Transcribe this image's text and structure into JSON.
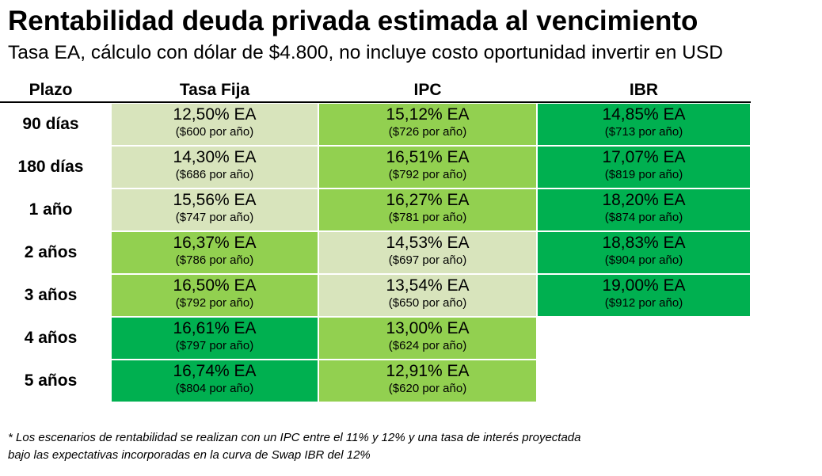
{
  "title": "Rentabilidad deuda privada estimada al vencimiento",
  "subtitle": "Tasa EA, cálculo con dólar de $4.800, no incluye costo oportunidad invertir en USD",
  "table": {
    "headers": [
      "Plazo",
      "Tasa Fija",
      "IPC",
      "IBR"
    ],
    "colors": {
      "light": "#d8e4bc",
      "mid": "#92d050",
      "dark": "#00b050"
    },
    "rows": [
      {
        "plazo": "90 días",
        "fija": {
          "rate": "12,50% EA",
          "annual": "($600 por año)",
          "shade": "light"
        },
        "ipc": {
          "rate": "15,12% EA",
          "annual": "($726 por año)",
          "shade": "mid"
        },
        "ibr": {
          "rate": "14,85% EA",
          "annual": "($713 por año)",
          "shade": "dark"
        }
      },
      {
        "plazo": "180 días",
        "fija": {
          "rate": "14,30% EA",
          "annual": "($686 por año)",
          "shade": "light"
        },
        "ipc": {
          "rate": "16,51% EA",
          "annual": "($792 por año)",
          "shade": "mid"
        },
        "ibr": {
          "rate": "17,07% EA",
          "annual": "($819 por año)",
          "shade": "dark"
        }
      },
      {
        "plazo": "1 año",
        "fija": {
          "rate": "15,56% EA",
          "annual": "($747 por año)",
          "shade": "light"
        },
        "ipc": {
          "rate": "16,27% EA",
          "annual": "($781 por año)",
          "shade": "mid"
        },
        "ibr": {
          "rate": "18,20% EA",
          "annual": "($874 por año)",
          "shade": "dark"
        }
      },
      {
        "plazo": "2 años",
        "fija": {
          "rate": "16,37% EA",
          "annual": "($786 por año)",
          "shade": "mid"
        },
        "ipc": {
          "rate": "14,53% EA",
          "annual": "($697 por año)",
          "shade": "light"
        },
        "ibr": {
          "rate": "18,83% EA",
          "annual": "($904 por año)",
          "shade": "dark"
        }
      },
      {
        "plazo": "3 años",
        "fija": {
          "rate": "16,50% EA",
          "annual": "($792 por año)",
          "shade": "mid"
        },
        "ipc": {
          "rate": "13,54% EA",
          "annual": "($650 por año)",
          "shade": "light"
        },
        "ibr": {
          "rate": "19,00% EA",
          "annual": "($912 por año)",
          "shade": "dark"
        }
      },
      {
        "plazo": "4 años",
        "fija": {
          "rate": "16,61% EA",
          "annual": "($797 por año)",
          "shade": "dark"
        },
        "ipc": {
          "rate": "13,00% EA",
          "annual": "($624 por año)",
          "shade": "mid"
        }
      },
      {
        "plazo": "5 años",
        "fija": {
          "rate": "16,74% EA",
          "annual": "($804 por año)",
          "shade": "dark"
        },
        "ipc": {
          "rate": "12,91% EA",
          "annual": "($620 por año)",
          "shade": "mid"
        }
      }
    ]
  },
  "footnote": {
    "line1": "* Los escenarios de rentabilidad se realizan con un IPC entre el 11% y 12% y una tasa de interés proyectada",
    "line2": "bajo las expectativas incorporadas en la curva de Swap IBR del 12%"
  }
}
